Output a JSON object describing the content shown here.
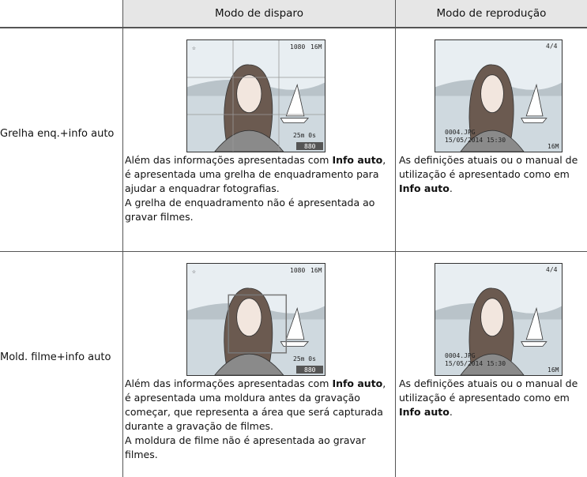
{
  "header": {
    "col_shooting": "Modo de disparo",
    "col_playback": "Modo de reprodução"
  },
  "rows": [
    {
      "label": "Grelha enq.+info auto",
      "shooting_screen": {
        "resolution": "1080",
        "size": "16M",
        "time": "25m 0s",
        "count": "880"
      },
      "playback_screen": {
        "counter": "4/4",
        "file": "0004.JPG",
        "date": "15/05/2014 15:30",
        "size": "16M"
      },
      "shooting": {
        "before": "Além das informações apresentadas com ",
        "bold": "Info auto",
        "after": ", é apresentada uma grelha de enquadramento para ajudar a enquadrar fotografias.",
        "note": "A grelha de enquadramento não é apresentada ao gravar filmes."
      },
      "playback": {
        "before": "As definições atuais ou o manual de utilização é apresentado como em ",
        "bold": "Info auto",
        "after": "."
      }
    },
    {
      "label": "Mold. filme+info auto",
      "shooting_screen": {
        "resolution": "1080",
        "size": "16M",
        "time": "25m 0s",
        "count": "880"
      },
      "playback_screen": {
        "counter": "4/4",
        "file": "0004.JPG",
        "date": "15/05/2014 15:30",
        "size": "16M"
      },
      "shooting": {
        "before": "Além das informações apresentadas com ",
        "bold": "Info auto",
        "after": ", é apresentada uma moldura antes da gravação começar, que representa a área que será capturada durante a gravação de filmes.",
        "note": "A moldura de filme não é apresentada ao gravar filmes."
      },
      "playback": {
        "before": "As definições atuais ou o manual de utilização é apresentado como em ",
        "bold": "Info auto",
        "after": "."
      }
    }
  ]
}
